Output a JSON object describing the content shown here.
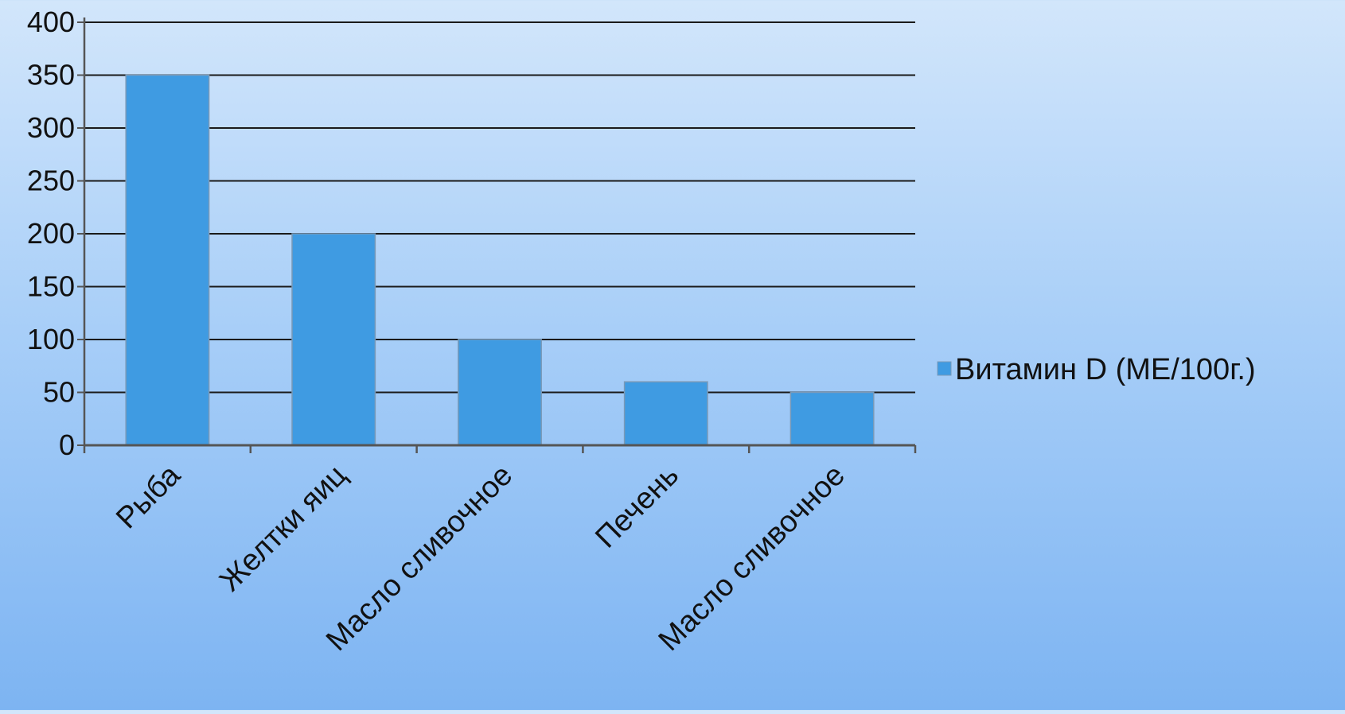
{
  "chart_data": {
    "type": "bar",
    "categories": [
      "Рыба",
      "Желтки яиц",
      "Масло сливочное",
      "Печень",
      "Масло сливочное"
    ],
    "series": [
      {
        "name": "Витамин D (МЕ/100г.)",
        "values": [
          350,
          200,
          100,
          60,
          50
        ],
        "color": "#3f9be2"
      }
    ],
    "ylim": [
      0,
      400
    ],
    "yticks": [
      0,
      50,
      100,
      150,
      200,
      250,
      300,
      350,
      400
    ],
    "grid": true,
    "legend": "right",
    "xlabel": "",
    "ylabel": "",
    "title": ""
  }
}
